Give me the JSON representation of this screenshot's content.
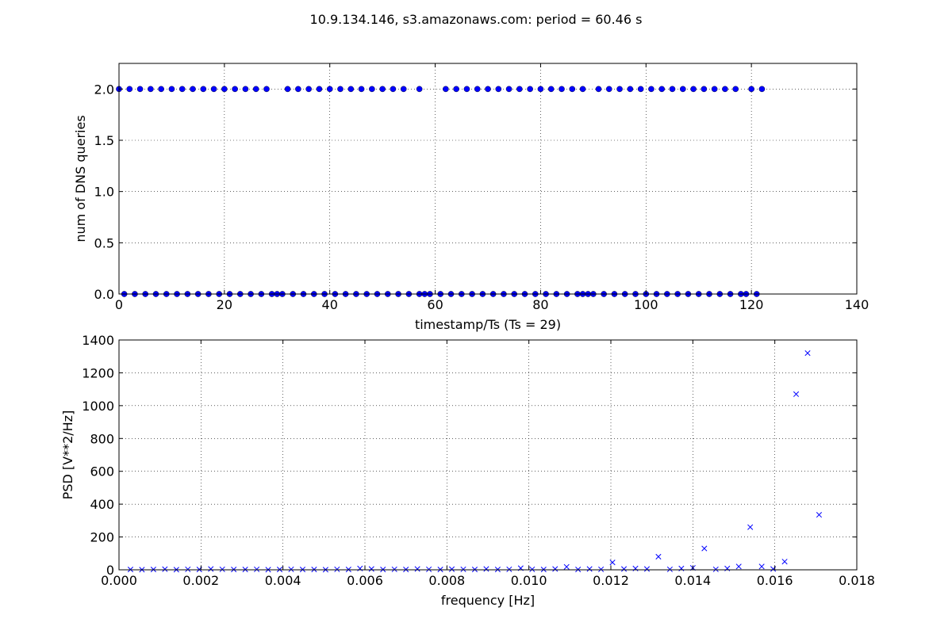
{
  "figure": {
    "title": "10.9.134.146, s3.amazonaws.com: period = 60.46 s"
  },
  "chart_data": [
    {
      "type": "scatter",
      "xlabel": "timestamp/Ts (Ts = 29)",
      "ylabel": "num of DNS queries",
      "xlim": [
        0,
        140
      ],
      "ylim": [
        0,
        2.25
      ],
      "xticks": [
        0,
        20,
        40,
        60,
        80,
        100,
        120,
        140
      ],
      "yticks": [
        0.0,
        0.5,
        1.0,
        1.5,
        2.0
      ],
      "xtick_labels": [
        "0",
        "20",
        "40",
        "60",
        "80",
        "100",
        "120",
        "140"
      ],
      "ytick_labels": [
        "0.0",
        "0.5",
        "1.0",
        "1.5",
        "2.0"
      ],
      "grid": true,
      "marker": "circle",
      "color": "#0000ff",
      "series": [
        {
          "x": [
            0,
            2,
            4,
            6,
            8,
            10,
            12,
            14,
            16,
            18,
            20,
            22,
            24,
            26,
            28,
            32,
            34,
            36,
            38,
            40,
            42,
            44,
            46,
            48,
            50,
            52,
            54,
            57,
            62,
            64,
            66,
            68,
            70,
            72,
            74,
            76,
            78,
            80,
            82,
            84,
            86,
            88,
            91,
            93,
            95,
            97,
            99,
            101,
            103,
            105,
            107,
            109,
            111,
            113,
            115,
            117,
            120,
            122
          ],
          "y": [
            2,
            2,
            2,
            2,
            2,
            2,
            2,
            2,
            2,
            2,
            2,
            2,
            2,
            2,
            2,
            2,
            2,
            2,
            2,
            2,
            2,
            2,
            2,
            2,
            2,
            2,
            2,
            2,
            2,
            2,
            2,
            2,
            2,
            2,
            2,
            2,
            2,
            2,
            2,
            2,
            2,
            2,
            2,
            2,
            2,
            2,
            2,
            2,
            2,
            2,
            2,
            2,
            2,
            2,
            2,
            2,
            2,
            2
          ]
        },
        {
          "x": [
            1,
            3,
            5,
            7,
            9,
            11,
            13,
            15,
            17,
            19,
            21,
            23,
            25,
            27,
            29,
            30,
            31,
            33,
            35,
            37,
            39,
            41,
            43,
            45,
            47,
            49,
            51,
            53,
            55,
            57,
            58,
            59,
            61,
            63,
            65,
            67,
            69,
            71,
            73,
            75,
            77,
            79,
            81,
            83,
            85,
            87,
            88,
            89,
            90,
            92,
            94,
            96,
            98,
            100,
            102,
            104,
            106,
            108,
            110,
            112,
            114,
            116,
            118,
            119,
            121
          ],
          "y": [
            0,
            0,
            0,
            0,
            0,
            0,
            0,
            0,
            0,
            0,
            0,
            0,
            0,
            0,
            0,
            0,
            0,
            0,
            0,
            0,
            0,
            0,
            0,
            0,
            0,
            0,
            0,
            0,
            0,
            0,
            0,
            0,
            0,
            0,
            0,
            0,
            0,
            0,
            0,
            0,
            0,
            0,
            0,
            0,
            0,
            0,
            0,
            0,
            0,
            0,
            0,
            0,
            0,
            0,
            0,
            0,
            0,
            0,
            0,
            0,
            0,
            0,
            0,
            0,
            0
          ]
        }
      ]
    },
    {
      "type": "scatter",
      "xlabel": "frequency [Hz]",
      "ylabel": "PSD [V**2/Hz]",
      "xlim": [
        0,
        0.018
      ],
      "ylim": [
        0,
        1400
      ],
      "xticks": [
        0,
        0.002,
        0.004,
        0.006,
        0.008,
        0.01,
        0.012,
        0.014,
        0.016,
        0.018
      ],
      "yticks": [
        0,
        200,
        400,
        600,
        800,
        1000,
        1200,
        1400
      ],
      "xtick_labels": [
        "0.000",
        "0.002",
        "0.004",
        "0.006",
        "0.008",
        "0.010",
        "0.012",
        "0.014",
        "0.016",
        "0.018"
      ],
      "ytick_labels": [
        "0",
        "200",
        "400",
        "600",
        "800",
        "1000",
        "1200",
        "1400"
      ],
      "grid": true,
      "marker": "x",
      "color": "#0000ff",
      "series": [
        {
          "x": [
            0.00028,
            0.00056,
            0.00084,
            0.00112,
            0.0014,
            0.00168,
            0.00196,
            0.00224,
            0.00252,
            0.0028,
            0.00308,
            0.00336,
            0.00364,
            0.00392,
            0.0042,
            0.00448,
            0.00476,
            0.00504,
            0.00532,
            0.0056,
            0.00588,
            0.00616,
            0.00644,
            0.00672,
            0.007,
            0.00728,
            0.00756,
            0.00784,
            0.00812,
            0.0084,
            0.00868,
            0.00896,
            0.00924,
            0.00952,
            0.0098,
            0.01008,
            0.01036,
            0.01064,
            0.01092,
            0.0112,
            0.01148,
            0.01176,
            0.01204,
            0.01232,
            0.0126,
            0.01288,
            0.01316,
            0.01344,
            0.01372,
            0.014,
            0.01428,
            0.01456,
            0.01484,
            0.01512,
            0.0154,
            0.01568,
            0.01596,
            0.01624,
            0.01652,
            0.0168,
            0.01708
          ],
          "y": [
            2,
            1,
            2,
            4,
            1,
            3,
            2,
            5,
            3,
            2,
            2,
            3,
            1,
            2,
            3,
            2,
            2,
            1,
            3,
            2,
            8,
            5,
            2,
            3,
            2,
            5,
            3,
            2,
            4,
            3,
            2,
            5,
            2,
            3,
            10,
            3,
            2,
            5,
            18,
            2,
            5,
            3,
            45,
            5,
            8,
            5,
            80,
            3,
            8,
            12,
            130,
            3,
            8,
            20,
            260,
            20,
            5,
            50,
            1070,
            1320,
            335
          ]
        }
      ]
    }
  ]
}
